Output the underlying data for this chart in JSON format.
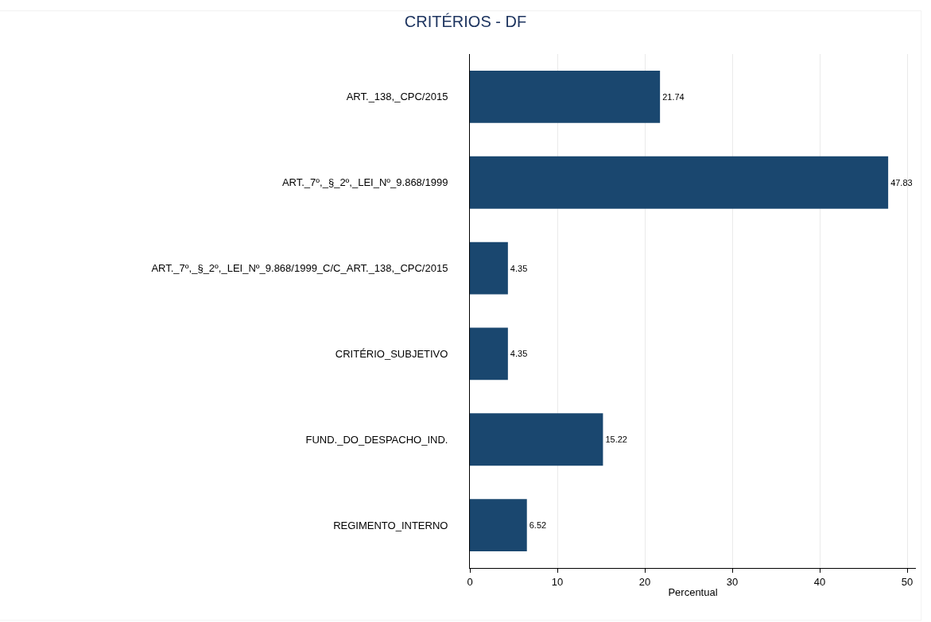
{
  "chart_data": {
    "type": "bar",
    "orientation": "horizontal",
    "title": "CRITÉRIOS - DF",
    "xlabel": "Percentual",
    "categories": [
      "ART._138,_CPC/2015",
      "ART._7º,_§_2º,_LEI_Nº_9.868/1999",
      "ART._7º,_§_2º,_LEI_Nº_9.868/1999_C/C_ART._138,_CPC/2015",
      "CRITÉRIO_SUBJETIVO",
      "FUND._DO_DESPACHO_IND.",
      "REGIMENTO_INTERNO"
    ],
    "values": [
      21.74,
      47.83,
      4.35,
      4.35,
      15.22,
      6.52
    ],
    "color": "#1a476f",
    "data_labels": true,
    "xlim": [
      0,
      51
    ],
    "xticks": [
      0,
      10,
      20,
      30,
      40,
      50
    ],
    "grid": "x",
    "legend": false
  }
}
